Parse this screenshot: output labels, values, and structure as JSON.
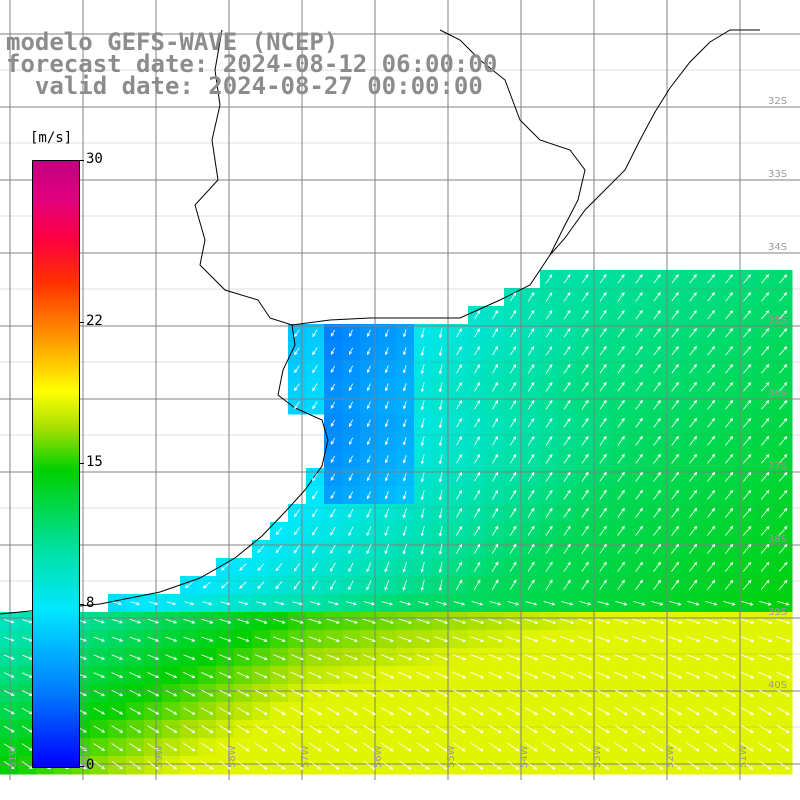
{
  "title": {
    "model": "modelo GEFS-WAVE (NCEP)",
    "forecast": "forecast date: 2024-08-12 06:00:00",
    "valid": "  valid date: 2024-08-27 00:00:00"
  },
  "colorbar": {
    "unit": "[m/s]",
    "min": 0,
    "max": 30,
    "ticks": [
      {
        "value": 30,
        "label": "30"
      },
      {
        "value": 22,
        "label": "22"
      },
      {
        "value": 15,
        "label": "15"
      },
      {
        "value": 8,
        "label": "8"
      },
      {
        "value": 0,
        "label": "0"
      }
    ]
  },
  "map": {
    "lat_labels": [
      "32S",
      "33S",
      "34S",
      "35S",
      "36S",
      "37S",
      "38S",
      "39S",
      "40S"
    ],
    "lon_labels": [
      "61W",
      "60W",
      "59W",
      "58W",
      "57W",
      "56W",
      "55W",
      "54W",
      "53W",
      "52W",
      "51W"
    ],
    "colors": {
      "land": "#ffffff",
      "grid": "#808080",
      "coast": "#000000",
      "arrow": "#ffffff",
      "label": "#9a9a9a"
    }
  }
}
